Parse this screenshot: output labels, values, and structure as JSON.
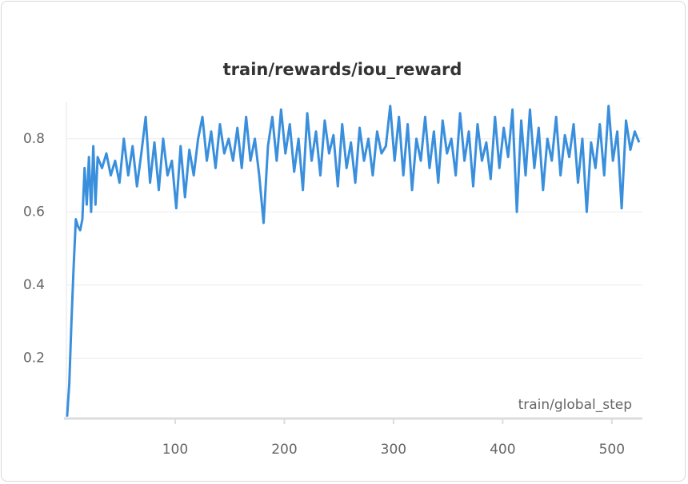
{
  "chart_data": {
    "type": "line",
    "title": "train/rewards/iou_reward",
    "x_label": "train/global_step",
    "xlim": [
      0,
      528
    ],
    "ylim": [
      0.035,
      0.9
    ],
    "xticks": [
      100,
      200,
      300,
      400,
      500
    ],
    "yticks": [
      0.2,
      0.4,
      0.6,
      0.8
    ],
    "grid": true,
    "x": [
      1,
      3,
      5,
      7,
      9,
      11,
      13,
      15,
      17,
      19,
      21,
      23,
      25,
      27,
      29,
      33,
      37,
      41,
      45,
      49,
      53,
      57,
      61,
      65,
      69,
      73,
      77,
      81,
      85,
      89,
      93,
      97,
      101,
      105,
      109,
      113,
      117,
      121,
      125,
      129,
      133,
      137,
      141,
      145,
      149,
      153,
      157,
      161,
      165,
      169,
      173,
      177,
      181,
      185,
      189,
      193,
      197,
      201,
      205,
      209,
      213,
      217,
      221,
      225,
      229,
      233,
      237,
      241,
      245,
      249,
      253,
      257,
      261,
      265,
      269,
      273,
      277,
      281,
      285,
      289,
      293,
      297,
      301,
      305,
      309,
      313,
      317,
      321,
      325,
      329,
      333,
      337,
      341,
      345,
      349,
      353,
      357,
      361,
      365,
      369,
      373,
      377,
      381,
      385,
      389,
      393,
      397,
      401,
      405,
      409,
      413,
      417,
      421,
      425,
      429,
      433,
      437,
      441,
      445,
      449,
      453,
      457,
      461,
      465,
      469,
      473,
      477,
      481,
      485,
      489,
      493,
      497,
      501,
      505,
      509,
      513,
      517,
      521,
      525
    ],
    "series": [
      {
        "name": "iou_reward",
        "color": "#3a8fdd",
        "values": [
          0.04,
          0.13,
          0.3,
          0.45,
          0.58,
          0.56,
          0.55,
          0.58,
          0.72,
          0.62,
          0.75,
          0.6,
          0.78,
          0.62,
          0.75,
          0.72,
          0.76,
          0.7,
          0.74,
          0.68,
          0.8,
          0.7,
          0.78,
          0.67,
          0.76,
          0.86,
          0.68,
          0.79,
          0.66,
          0.8,
          0.7,
          0.74,
          0.61,
          0.78,
          0.64,
          0.77,
          0.7,
          0.8,
          0.86,
          0.74,
          0.82,
          0.72,
          0.84,
          0.76,
          0.8,
          0.74,
          0.83,
          0.72,
          0.86,
          0.74,
          0.8,
          0.7,
          0.57,
          0.78,
          0.86,
          0.74,
          0.88,
          0.76,
          0.84,
          0.71,
          0.8,
          0.66,
          0.87,
          0.74,
          0.82,
          0.7,
          0.85,
          0.76,
          0.81,
          0.67,
          0.84,
          0.72,
          0.79,
          0.68,
          0.83,
          0.74,
          0.8,
          0.7,
          0.82,
          0.76,
          0.78,
          0.89,
          0.74,
          0.86,
          0.7,
          0.84,
          0.66,
          0.8,
          0.74,
          0.86,
          0.72,
          0.82,
          0.68,
          0.85,
          0.76,
          0.8,
          0.7,
          0.87,
          0.74,
          0.82,
          0.67,
          0.84,
          0.74,
          0.79,
          0.69,
          0.86,
          0.72,
          0.83,
          0.75,
          0.88,
          0.6,
          0.85,
          0.7,
          0.88,
          0.72,
          0.83,
          0.66,
          0.8,
          0.74,
          0.86,
          0.7,
          0.81,
          0.75,
          0.84,
          0.68,
          0.8,
          0.6,
          0.79,
          0.72,
          0.84,
          0.7,
          0.89,
          0.74,
          0.82,
          0.61,
          0.85,
          0.77,
          0.82,
          0.79
        ]
      }
    ]
  }
}
